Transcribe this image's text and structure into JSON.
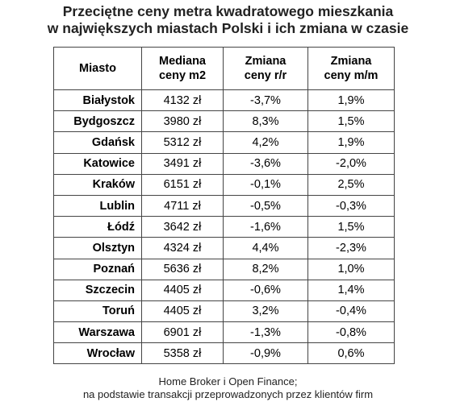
{
  "title": {
    "line1": "Przeciętne ceny metra kwadratowego mieszkania",
    "line2": "w największych miastach Polski i ich zmiana w czasie"
  },
  "table": {
    "headers": {
      "city": "Miasto",
      "median_line1": "Mediana",
      "median_line2": "ceny m2",
      "yoy_line1": "Zmiana",
      "yoy_line2": "ceny r/r",
      "mom_line1": "Zmiana",
      "mom_line2": "ceny m/m"
    },
    "rows": [
      {
        "city": "Białystok",
        "median": "4132 zł",
        "yoy": "-3,7%",
        "mom": "1,9%"
      },
      {
        "city": "Bydgoszcz",
        "median": "3980 zł",
        "yoy": "8,3%",
        "mom": "1,5%"
      },
      {
        "city": "Gdańsk",
        "median": "5312 zł",
        "yoy": "4,2%",
        "mom": "1,9%"
      },
      {
        "city": "Katowice",
        "median": "3491 zł",
        "yoy": "-3,6%",
        "mom": "-2,0%"
      },
      {
        "city": "Kraków",
        "median": "6151 zł",
        "yoy": "-0,1%",
        "mom": "2,5%"
      },
      {
        "city": "Lublin",
        "median": "4711 zł",
        "yoy": "-0,5%",
        "mom": "-0,3%"
      },
      {
        "city": "Łódź",
        "median": "3642 zł",
        "yoy": "-1,6%",
        "mom": "1,5%"
      },
      {
        "city": "Olsztyn",
        "median": "4324 zł",
        "yoy": "4,4%",
        "mom": "-2,3%"
      },
      {
        "city": "Poznań",
        "median": "5636 zł",
        "yoy": "8,2%",
        "mom": "1,0%"
      },
      {
        "city": "Szczecin",
        "median": "4405 zł",
        "yoy": "-0,6%",
        "mom": "1,4%"
      },
      {
        "city": "Toruń",
        "median": "4405 zł",
        "yoy": "3,2%",
        "mom": "-0,4%"
      },
      {
        "city": "Warszawa",
        "median": "6901 zł",
        "yoy": "-1,3%",
        "mom": "-0,8%"
      },
      {
        "city": "Wrocław",
        "median": "5358 zł",
        "yoy": "-0,9%",
        "mom": "0,6%"
      }
    ]
  },
  "source": {
    "line1": "Home Broker i Open Finance;",
    "line2": "na podstawie transakcji przeprowadzonych przez klientów firm"
  }
}
